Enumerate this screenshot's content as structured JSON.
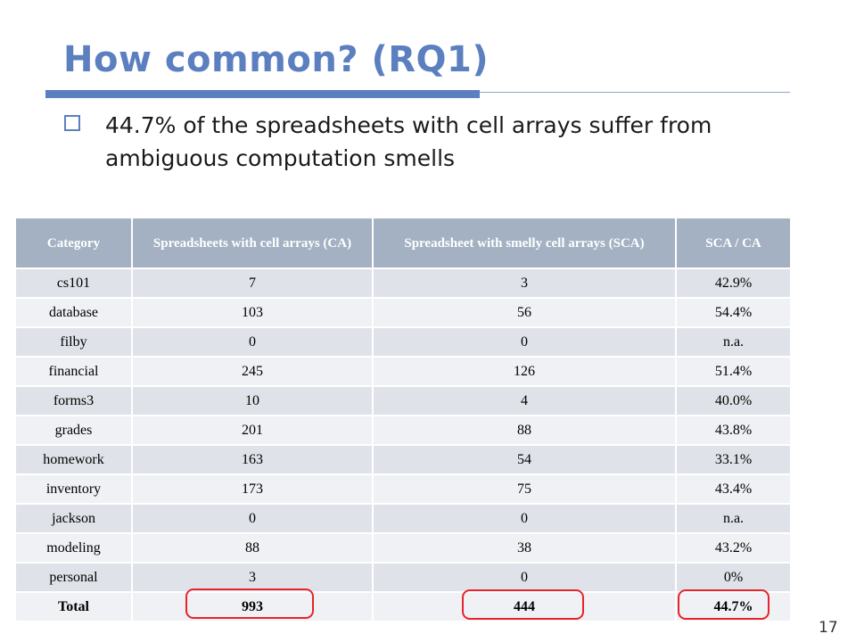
{
  "slide": {
    "title": "How common? (RQ1)",
    "bullet": "44.7% of the spreadsheets with cell arrays suffer from ambiguous computation smells",
    "page_number": "17",
    "accent_color": "#5b7fbf",
    "highlight_color": "#e8232c"
  },
  "table": {
    "headers": [
      "Category",
      "Spreadsheets with cell arrays (CA)",
      "Spreadsheet with smelly cell arrays (SCA)",
      "SCA / CA"
    ],
    "rows": [
      [
        "cs101",
        "7",
        "3",
        "42.9%"
      ],
      [
        "database",
        "103",
        "56",
        "54.4%"
      ],
      [
        "filby",
        "0",
        "0",
        "n.a."
      ],
      [
        "financial",
        "245",
        "126",
        "51.4%"
      ],
      [
        "forms3",
        "10",
        "4",
        "40.0%"
      ],
      [
        "grades",
        "201",
        "88",
        "43.8%"
      ],
      [
        "homework",
        "163",
        "54",
        "33.1%"
      ],
      [
        "inventory",
        "173",
        "75",
        "43.4%"
      ],
      [
        "jackson",
        "0",
        "0",
        "n.a."
      ],
      [
        "modeling",
        "88",
        "38",
        "43.2%"
      ],
      [
        "personal",
        "3",
        "0",
        "0%"
      ]
    ],
    "total": [
      "Total",
      "993",
      "444",
      "44.7%"
    ]
  }
}
